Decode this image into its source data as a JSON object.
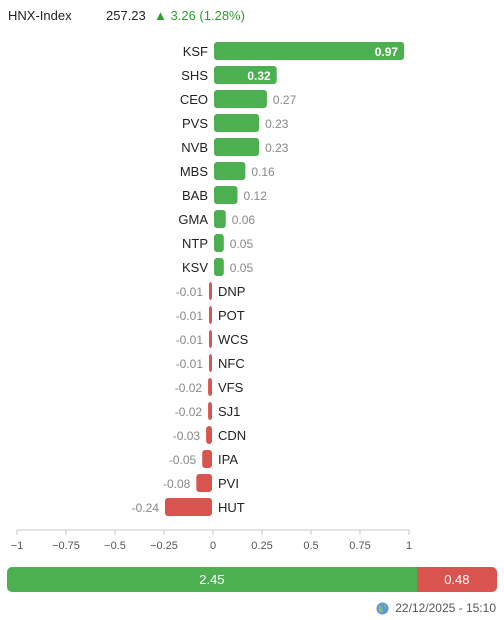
{
  "header": {
    "index_name": "HNX-Index",
    "price": "257.23",
    "change": "3.26 (1.28%)",
    "direction_icon": "triangle-up-icon",
    "up_color": "#2e9e2e"
  },
  "chart_data": {
    "type": "bar",
    "orientation": "horizontal",
    "categories": [
      "KSF",
      "SHS",
      "CEO",
      "PVS",
      "NVB",
      "MBS",
      "BAB",
      "GMA",
      "NTP",
      "KSV",
      "DNP",
      "POT",
      "WCS",
      "NFC",
      "VFS",
      "SJ1",
      "CDN",
      "IPA",
      "PVI",
      "HUT"
    ],
    "values": [
      0.97,
      0.32,
      0.27,
      0.23,
      0.23,
      0.16,
      0.12,
      0.06,
      0.05,
      0.05,
      -0.01,
      -0.01,
      -0.01,
      -0.01,
      -0.02,
      -0.02,
      -0.03,
      -0.05,
      -0.08,
      -0.24
    ],
    "value_labels": [
      "0.97",
      "0.32",
      "0.27",
      "0.23",
      "0.23",
      "0.16",
      "0.12",
      "0.06",
      "0.05",
      "0.05",
      "-0.01",
      "-0.01",
      "-0.01",
      "-0.01",
      "-0.02",
      "-0.02",
      "-0.03",
      "-0.05",
      "-0.08",
      "-0.24"
    ],
    "xlim": [
      -1,
      1
    ],
    "x_ticks": [
      -1,
      -0.75,
      -0.5,
      -0.25,
      0,
      0.25,
      0.5,
      0.75,
      1
    ],
    "x_tick_labels": [
      "−1",
      "−0.75",
      "−0.5",
      "−0.25",
      "0",
      "0.25",
      "0.5",
      "0.75",
      "1"
    ],
    "positive_color": "#4caf50",
    "negative_color": "#d9534f",
    "grid": false
  },
  "summary": {
    "positive_total": 2.45,
    "negative_total": 0.48,
    "positive_label": "2.45",
    "negative_label": "0.48"
  },
  "footer": {
    "timestamp": "22/12/2025 - 15:10",
    "icon": "globe-icon"
  }
}
